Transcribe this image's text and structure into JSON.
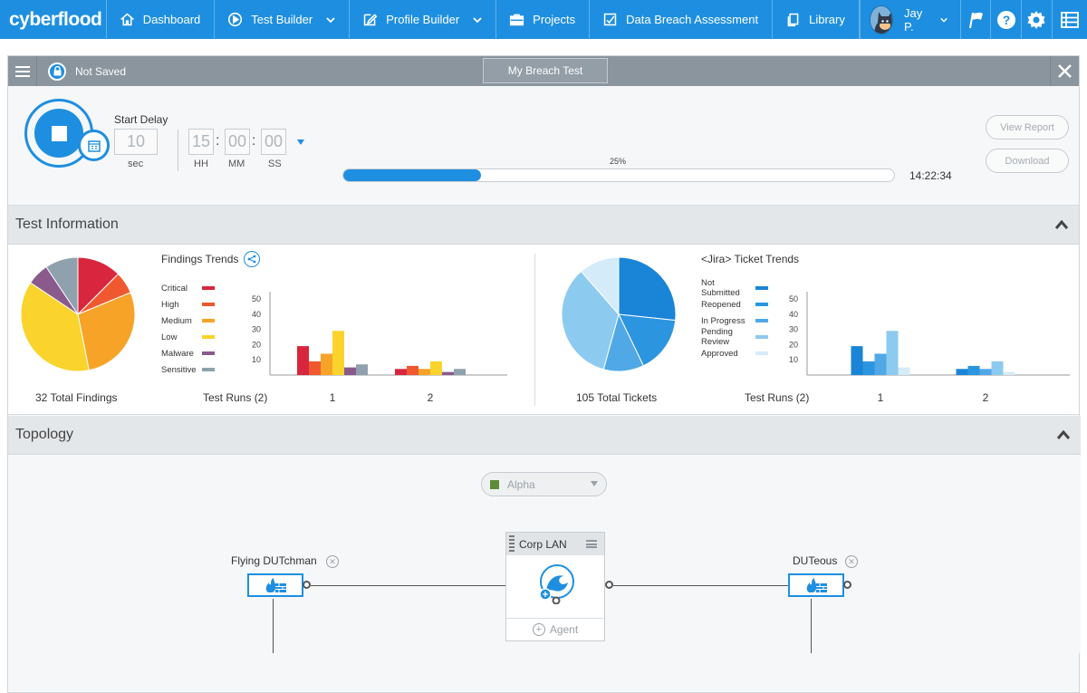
{
  "nav": {
    "brand": "cyberflood",
    "items": [
      {
        "label": "Dashboard",
        "icon": "home-icon"
      },
      {
        "label": "Test Builder",
        "icon": "play-circle-icon",
        "dropdown": true
      },
      {
        "label": "Profile Builder",
        "icon": "edit-icon",
        "dropdown": true
      },
      {
        "label": "Projects",
        "icon": "briefcase-icon"
      },
      {
        "label": "Data Breach Assessment",
        "icon": "checklist-icon"
      },
      {
        "label": "Library",
        "icon": "copy-icon"
      }
    ],
    "user": "Jay P.",
    "icons": [
      "flag-icon",
      "help-icon",
      "gear-icon",
      "grid-list-icon"
    ]
  },
  "header": {
    "status": "Not Saved",
    "test_name": "My Breach Test"
  },
  "control": {
    "start_delay_label": "Start Delay",
    "delay_value": "10",
    "delay_unit": "sec",
    "hh": "15",
    "mm": "00",
    "ss": "00",
    "hh_label": "HH",
    "mm_label": "MM",
    "ss_label": "SS",
    "progress_label": "25%",
    "progress": 0.25,
    "time": "14:22:34",
    "view_report": "View Report",
    "download": "Download"
  },
  "test_information": {
    "title": "Test Information",
    "findings": {
      "total_label": "32 Total Findings",
      "trends_title": "Findings Trends",
      "runs_label": "Test Runs (2)",
      "legend": [
        {
          "name": "Critical",
          "color": "#d7263d"
        },
        {
          "name": "High",
          "color": "#f0582f"
        },
        {
          "name": "Medium",
          "color": "#f7a327"
        },
        {
          "name": "Low",
          "color": "#fad32c"
        },
        {
          "name": "Malware",
          "color": "#8a5a8c"
        },
        {
          "name": "Sensitive",
          "color": "#8ea1ad"
        }
      ]
    },
    "tickets": {
      "total_label": "105 Total Tickets",
      "trends_title": "<Jira> Ticket Trends",
      "runs_label": "Test Runs (2)",
      "legend": [
        {
          "name": "Not\nSubmitted",
          "color": "#1a84d6"
        },
        {
          "name": "Reopened",
          "color": "#2c95e0"
        },
        {
          "name": "In Progress",
          "color": "#50a8e6"
        },
        {
          "name": "Pending\nReview",
          "color": "#8dcaf0"
        },
        {
          "name": "Approved",
          "color": "#d4ebf9"
        }
      ]
    }
  },
  "chart_data": [
    {
      "type": "pie",
      "labels": [
        "Critical",
        "High",
        "Medium",
        "Low",
        "Malware",
        "Sensitive"
      ],
      "values": [
        4,
        2,
        9,
        12,
        2,
        3
      ],
      "colors": [
        "#d7263d",
        "#f0582f",
        "#f7a327",
        "#fad32c",
        "#8a5a8c",
        "#8ea1ad"
      ]
    },
    {
      "type": "bar",
      "categories": [
        "1",
        "2"
      ],
      "ylim": [
        0,
        50
      ],
      "yticks": [
        10,
        20,
        30,
        40,
        50
      ],
      "series": [
        {
          "name": "Critical",
          "values": [
            19,
            4
          ]
        },
        {
          "name": "High",
          "values": [
            9,
            6
          ]
        },
        {
          "name": "Medium",
          "values": [
            14,
            4
          ]
        },
        {
          "name": "Low",
          "values": [
            29,
            9
          ]
        },
        {
          "name": "Malware",
          "values": [
            5,
            2
          ]
        },
        {
          "name": "Sensitive",
          "values": [
            7,
            4
          ]
        }
      ]
    },
    {
      "type": "pie",
      "labels": [
        "Not Submitted",
        "Reopened",
        "In Progress",
        "Pending Review",
        "Approved"
      ],
      "values": [
        28,
        17,
        12,
        36,
        12
      ],
      "colors": [
        "#1a84d6",
        "#2c95e0",
        "#50a8e6",
        "#8dcaf0",
        "#d4ebf9"
      ]
    },
    {
      "type": "bar",
      "categories": [
        "1",
        "2"
      ],
      "ylim": [
        0,
        50
      ],
      "yticks": [
        10,
        20,
        30,
        40,
        50
      ],
      "series": [
        {
          "name": "Not Submitted",
          "values": [
            19,
            4
          ]
        },
        {
          "name": "Reopened",
          "values": [
            9,
            6
          ]
        },
        {
          "name": "In Progress",
          "values": [
            14,
            4
          ]
        },
        {
          "name": "Pending Review",
          "values": [
            29,
            9
          ]
        },
        {
          "name": "Approved",
          "values": [
            5,
            2
          ]
        }
      ]
    }
  ],
  "topology": {
    "title": "Topology",
    "select_value": "Alpha",
    "left_dut": "Flying DUTchman",
    "right_dut": "DUTeous",
    "network": "Corp LAN",
    "agent": "Agent"
  }
}
